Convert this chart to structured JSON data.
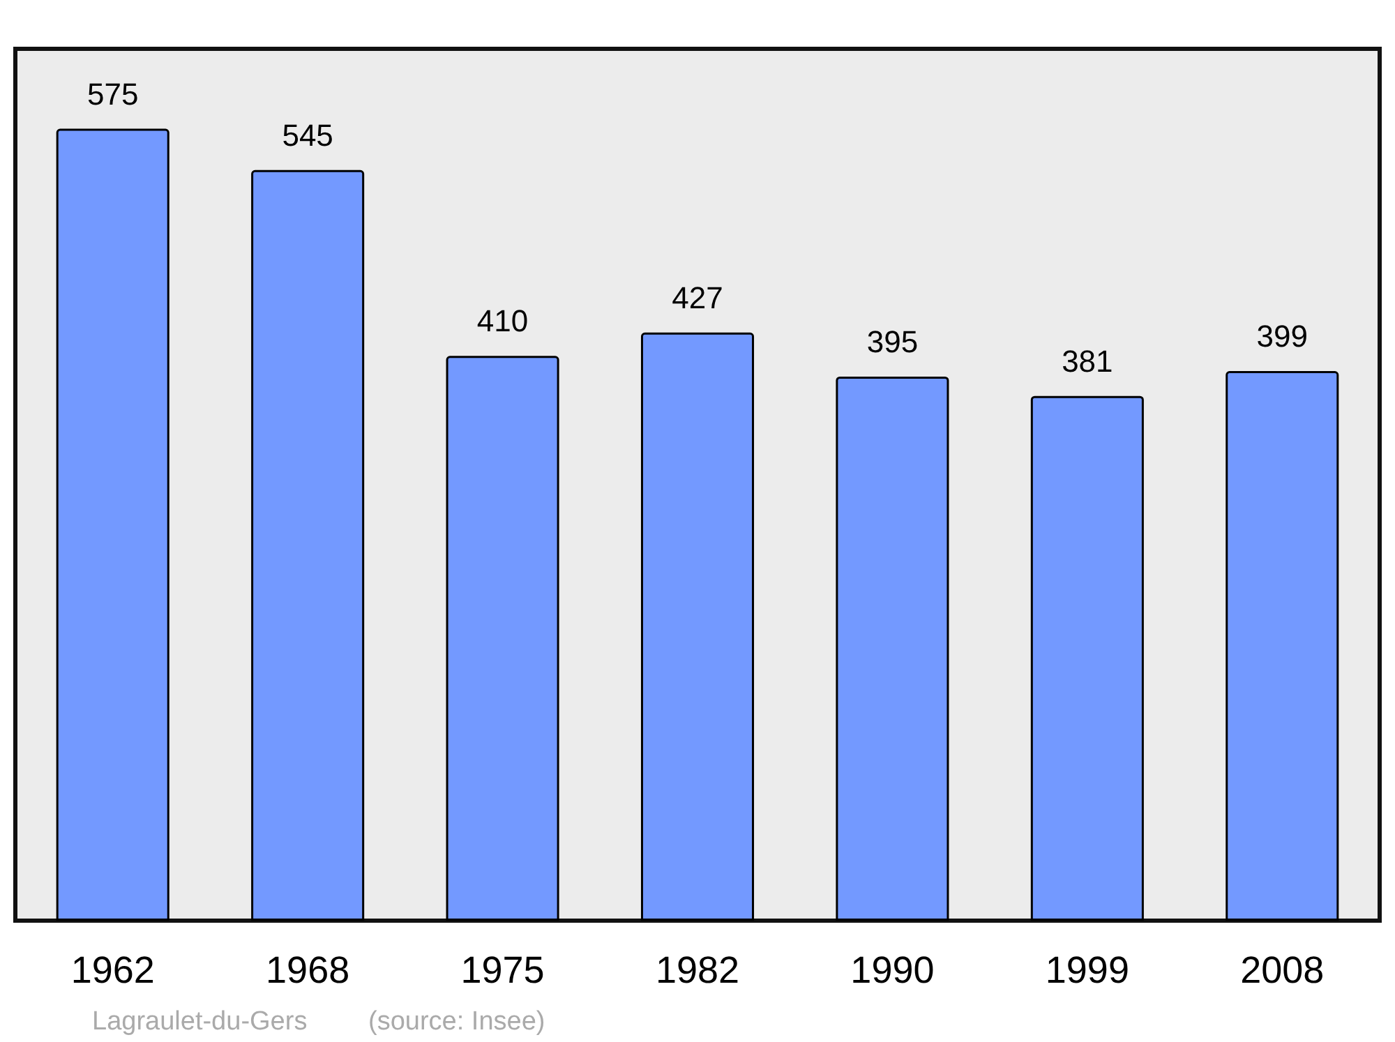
{
  "chart_data": {
    "type": "bar",
    "categories": [
      "1962",
      "1968",
      "1975",
      "1982",
      "1990",
      "1999",
      "2008"
    ],
    "values": [
      575,
      545,
      410,
      427,
      395,
      381,
      399
    ],
    "color": "#7399ff",
    "ylim": [
      0,
      633
    ],
    "data_labels": true,
    "grid": false,
    "tick_labels": "x",
    "annotations": [
      "Lagraulet-du-Gers",
      "(source: Insee)"
    ]
  }
}
